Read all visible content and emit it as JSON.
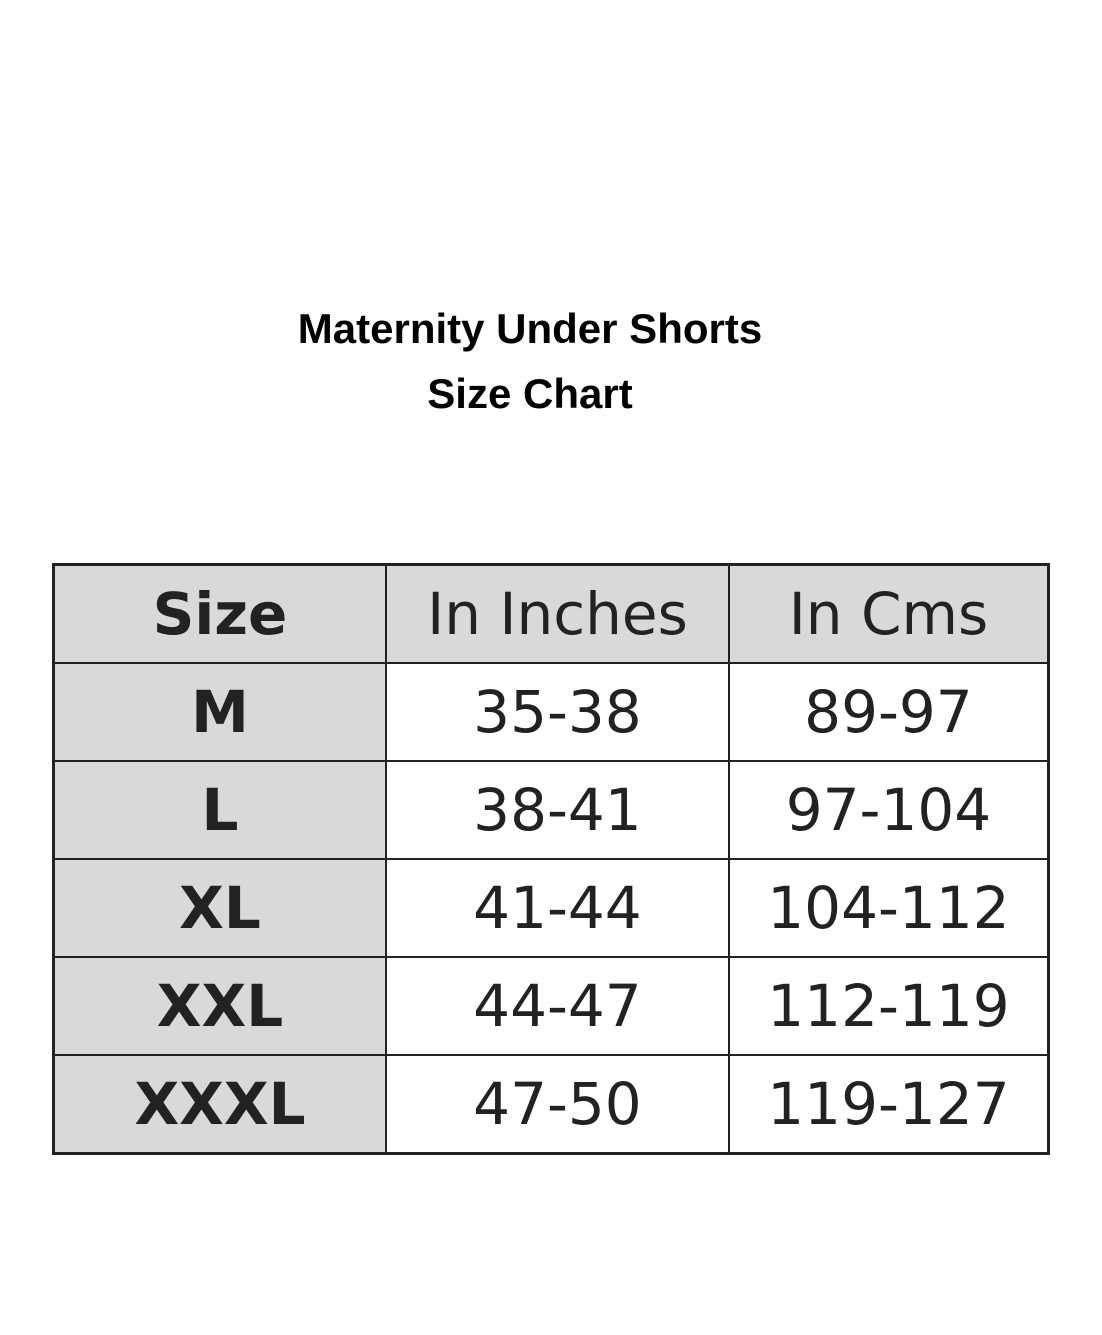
{
  "header": {
    "title": [
      "Maternity Under Shorts",
      "Size Chart"
    ]
  },
  "table": {
    "columns": [
      "Size",
      "In Inches",
      "In Cms"
    ],
    "rows": [
      [
        "M",
        "35-38",
        "89-97"
      ],
      [
        "L",
        "38-41",
        "97-104"
      ],
      [
        "XL",
        "41-44",
        "104-112"
      ],
      [
        "XXL",
        "44-47",
        "112-119"
      ],
      [
        "XXXL",
        "47-50",
        "119-127"
      ]
    ]
  }
}
